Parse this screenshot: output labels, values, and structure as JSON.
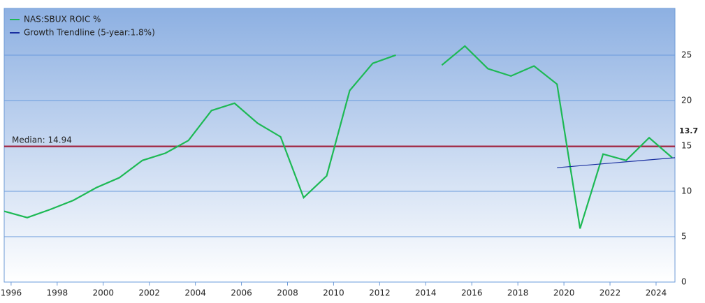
{
  "chart_data": {
    "type": "line",
    "xlim": [
      1995.7,
      2024.82
    ],
    "ylim": [
      0,
      30.15
    ],
    "xticks": [
      1996,
      1998,
      2000,
      2002,
      2004,
      2006,
      2008,
      2010,
      2012,
      2014,
      2016,
      2018,
      2020,
      2022,
      2024
    ],
    "yticks": [
      0,
      5,
      10,
      15,
      20,
      25
    ],
    "grid": true,
    "legend": "top-left",
    "series": [
      {
        "name": "NAS:SBUX ROIC %",
        "color": "#1db954",
        "x": [
          1995.7,
          1996.7,
          1997.7,
          1998.7,
          1999.7,
          2000.7,
          2001.7,
          2002.7,
          2003.7,
          2004.7,
          2005.7,
          2006.7,
          2007.7,
          2008.7,
          2009.7,
          2010.7,
          2011.7,
          2012.7,
          2013.7,
          2014.7,
          2015.7,
          2016.7,
          2017.7,
          2018.7,
          2019.7,
          2020.7,
          2021.7,
          2022.7,
          2023.7,
          2024.7
        ],
        "values": [
          7.8,
          7.1,
          8.0,
          9.0,
          10.4,
          11.5,
          13.4,
          14.2,
          15.6,
          18.9,
          19.7,
          17.5,
          16.0,
          9.3,
          11.7,
          21.1,
          24.1,
          25.0,
          null,
          23.9,
          26.0,
          23.5,
          22.7,
          23.8,
          21.8,
          5.9,
          14.1,
          13.4,
          15.9,
          13.7
        ]
      },
      {
        "name": "Growth Trendline (5-year:1.8%)",
        "color": "#1a2fa0",
        "x": [
          2019.7,
          2024.82
        ],
        "values": [
          12.6,
          13.7
        ]
      }
    ],
    "median": {
      "value": 14.94,
      "label": "Median: 14.94",
      "color": "#a3304c"
    }
  }
}
